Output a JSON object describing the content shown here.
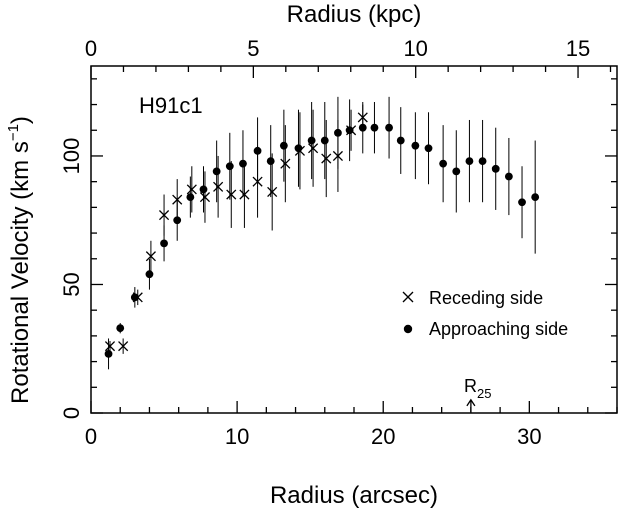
{
  "chart_data": {
    "type": "scatter",
    "title": "",
    "panel_label": "H91c1",
    "xlabel": "Radius (arcsec)",
    "x2label": "Radius (kpc)",
    "ylabel_main": "Rotational Velocity (km s",
    "ylabel_sup": "−1",
    "ylabel_close": ")",
    "xlim": [
      0,
      36
    ],
    "ylim": [
      0,
      135
    ],
    "x2lim": [
      0,
      16.2
    ],
    "xticks": [
      0,
      10,
      20,
      30
    ],
    "xtick_labels": [
      "0",
      "10",
      "20",
      "30"
    ],
    "yticks": [
      0,
      50,
      100
    ],
    "ytick_labels": [
      "0",
      "50",
      "100"
    ],
    "x2ticks": [
      0,
      5,
      10,
      15
    ],
    "x2tick_labels": [
      "0",
      "5",
      "10",
      "15"
    ],
    "grid": false,
    "legend_position": "lower-right",
    "annotation": {
      "base": "R",
      "sub": "25",
      "x": 26,
      "y": 2
    },
    "series": [
      {
        "name": "Receding side",
        "marker": "x",
        "points": [
          {
            "x": 1.3,
            "y": 26,
            "err": 2
          },
          {
            "x": 2.2,
            "y": 26,
            "err": 3
          },
          {
            "x": 3.2,
            "y": 45,
            "err": 3
          },
          {
            "x": 4.1,
            "y": 61,
            "err": 6
          },
          {
            "x": 5.0,
            "y": 77,
            "err": 8
          },
          {
            "x": 5.9,
            "y": 83,
            "err": 8
          },
          {
            "x": 6.9,
            "y": 87,
            "err": 9
          },
          {
            "x": 7.8,
            "y": 84,
            "err": 10
          },
          {
            "x": 8.7,
            "y": 88,
            "err": 12
          },
          {
            "x": 9.6,
            "y": 85,
            "err": 13
          },
          {
            "x": 10.5,
            "y": 85,
            "err": 13
          },
          {
            "x": 11.4,
            "y": 90,
            "err": 14
          },
          {
            "x": 12.4,
            "y": 86,
            "err": 15
          },
          {
            "x": 13.3,
            "y": 97,
            "err": 15
          },
          {
            "x": 14.3,
            "y": 102,
            "err": 15
          },
          {
            "x": 15.2,
            "y": 103,
            "err": 15
          },
          {
            "x": 16.1,
            "y": 99,
            "err": 15
          },
          {
            "x": 16.9,
            "y": 100,
            "err": 14
          },
          {
            "x": 17.8,
            "y": 110,
            "err": 8
          },
          {
            "x": 18.6,
            "y": 115,
            "err": 5
          }
        ]
      },
      {
        "name": "Approaching side",
        "marker": "dot",
        "points": [
          {
            "x": 1.2,
            "y": 23,
            "err": 6
          },
          {
            "x": 2.0,
            "y": 33,
            "err": 2
          },
          {
            "x": 3.0,
            "y": 45,
            "err": 4
          },
          {
            "x": 4.0,
            "y": 54,
            "err": 6
          },
          {
            "x": 5.0,
            "y": 66,
            "err": 7
          },
          {
            "x": 5.9,
            "y": 75,
            "err": 8
          },
          {
            "x": 6.8,
            "y": 84,
            "err": 8
          },
          {
            "x": 7.7,
            "y": 87,
            "err": 9
          },
          {
            "x": 8.6,
            "y": 94,
            "err": 12
          },
          {
            "x": 9.5,
            "y": 96,
            "err": 13
          },
          {
            "x": 10.4,
            "y": 97,
            "err": 13
          },
          {
            "x": 11.4,
            "y": 102,
            "err": 13
          },
          {
            "x": 12.3,
            "y": 98,
            "err": 14
          },
          {
            "x": 13.2,
            "y": 104,
            "err": 14
          },
          {
            "x": 14.2,
            "y": 103,
            "err": 15
          },
          {
            "x": 15.1,
            "y": 106,
            "err": 15
          },
          {
            "x": 16.0,
            "y": 106,
            "err": 15
          },
          {
            "x": 16.9,
            "y": 109,
            "err": 14
          },
          {
            "x": 17.7,
            "y": 110,
            "err": 12
          },
          {
            "x": 18.6,
            "y": 111,
            "err": 10
          },
          {
            "x": 19.4,
            "y": 111,
            "err": 10
          },
          {
            "x": 20.4,
            "y": 111,
            "err": 12
          },
          {
            "x": 21.2,
            "y": 106,
            "err": 13
          },
          {
            "x": 22.2,
            "y": 104,
            "err": 13
          },
          {
            "x": 23.1,
            "y": 103,
            "err": 14
          },
          {
            "x": 24.1,
            "y": 97,
            "err": 15
          },
          {
            "x": 25.0,
            "y": 94,
            "err": 16
          },
          {
            "x": 25.9,
            "y": 98,
            "err": 16
          },
          {
            "x": 26.8,
            "y": 98,
            "err": 16
          },
          {
            "x": 27.7,
            "y": 95,
            "err": 16
          },
          {
            "x": 28.6,
            "y": 92,
            "err": 15
          },
          {
            "x": 29.5,
            "y": 82,
            "err": 14
          },
          {
            "x": 30.4,
            "y": 84,
            "err": 22
          }
        ]
      }
    ]
  }
}
